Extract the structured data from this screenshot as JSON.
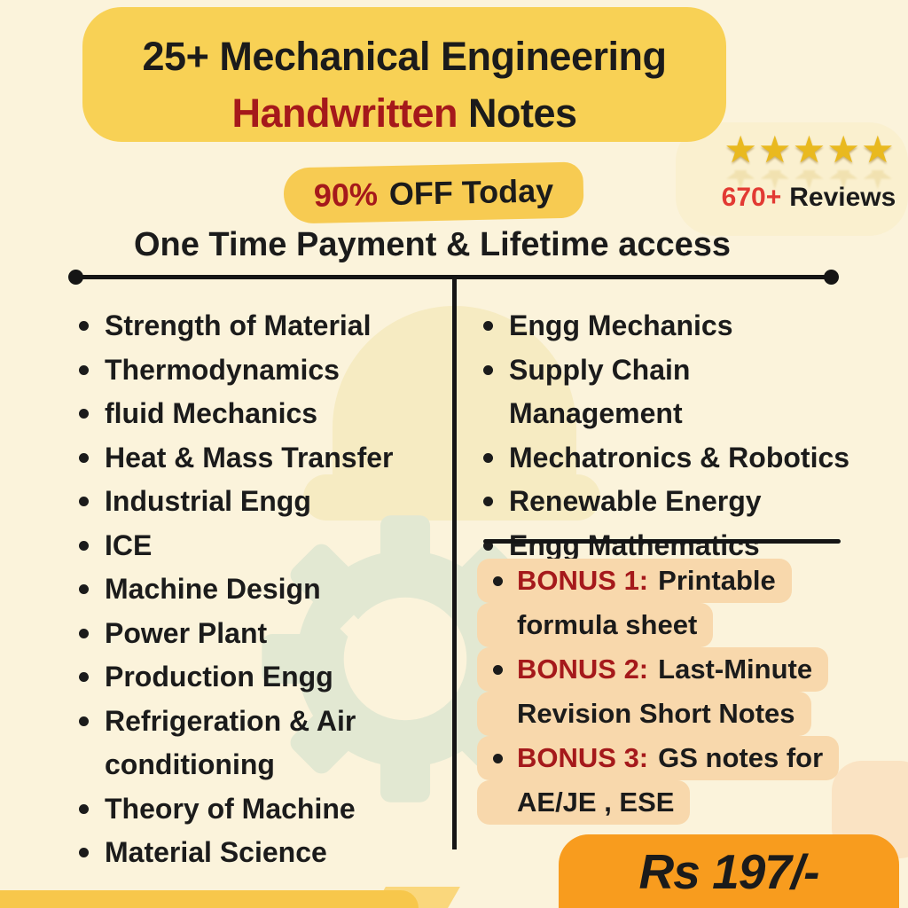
{
  "poster": {
    "header": {
      "line1": "25+ Mechanical Engineering",
      "line2_red": "Handwritten",
      "line2_black": "Notes"
    },
    "rating": {
      "star_char": "★",
      "star_count": 5,
      "count": "670+",
      "label": "Reviews"
    },
    "offer": {
      "percent": "90%",
      "text": "OFF Today"
    },
    "subheadline": "One Time Payment & Lifetime access",
    "left_subjects": [
      "Strength of Material",
      "Thermodynamics",
      "fluid Mechanics",
      "Heat & Mass Transfer",
      "Industrial Engg",
      "ICE",
      "Machine Design",
      "Power Plant",
      "Production Engg",
      "Refrigeration & Air conditioning",
      "Theory of Machine",
      "Material Science"
    ],
    "right_subjects": [
      "Engg Mechanics",
      "Supply Chain Management",
      "Mechatronics & Robotics",
      "Renewable Energy",
      "Engg Mathematics"
    ],
    "bonus_lines": [
      {
        "bullet": true,
        "red": "BONUS 1:",
        "black": "Printable"
      },
      {
        "bullet": false,
        "red": "",
        "black": "formula sheet"
      },
      {
        "bullet": true,
        "red": "BONUS 2:",
        "black": "Last-Minute"
      },
      {
        "bullet": false,
        "red": "",
        "black": "Revision Short Notes"
      },
      {
        "bullet": true,
        "red": "BONUS 3:",
        "black": "GS notes for"
      },
      {
        "bullet": false,
        "red": "",
        "black": "AE/JE , ESE"
      }
    ],
    "price": "Rs 197/-",
    "bullet_char": "•",
    "colors": {
      "background": "#FBF3DB",
      "banner_yellow": "#F8D155",
      "highlight_yellow": "#F7CB52",
      "bonus_peach": "#F8D8AC",
      "price_orange": "#F89C1E",
      "strip_yellow": "#F7C74B",
      "wedge_yellow": "#FAD77C",
      "dark_red": "#A5191B",
      "bright_red": "#E23A33",
      "text_black": "#1B1B1B",
      "star_gold": "#E9B91F"
    }
  }
}
